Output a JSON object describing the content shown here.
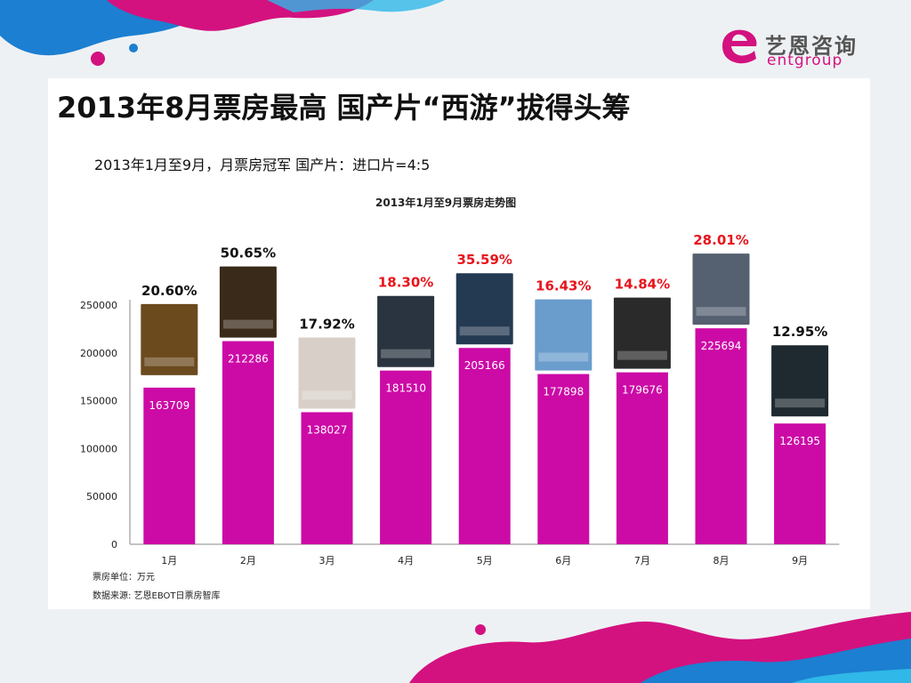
{
  "brand": {
    "name_cn": "艺恩咨询",
    "name_en": "entgroup",
    "colors": {
      "accent": "#d3127f",
      "bar": "#cc0aa6",
      "highlight": "#e8141c"
    }
  },
  "page": {
    "title": "2013年8月票房最高  国产片“西游”拔得头筹",
    "subtitle": "2013年1月至9月，月票房冠军  国产片：进口片=4:5"
  },
  "footnotes": {
    "unit": "票房单位：万元",
    "source": "数据来源: 艺恩EBOT日票房智库"
  },
  "chart_data": {
    "type": "bar",
    "title": "2013年1月至9月票房走势图",
    "categories": [
      "1月",
      "2月",
      "3月",
      "4月",
      "5月",
      "6月",
      "7月",
      "8月",
      "9月"
    ],
    "values": [
      163709,
      212286,
      138027,
      181510,
      205166,
      177898,
      179676,
      225694,
      126195
    ],
    "shares": [
      "20.60%",
      "50.65%",
      "17.92%",
      "18.30%",
      "35.59%",
      "16.43%",
      "14.84%",
      "28.01%",
      "12.95%"
    ],
    "share_is_import": [
      false,
      false,
      false,
      true,
      true,
      true,
      true,
      true,
      false
    ],
    "ylim": [
      0,
      250000
    ],
    "yticks": [
      0,
      50000,
      100000,
      150000,
      200000,
      250000
    ],
    "grid": false,
    "legend": "none"
  }
}
